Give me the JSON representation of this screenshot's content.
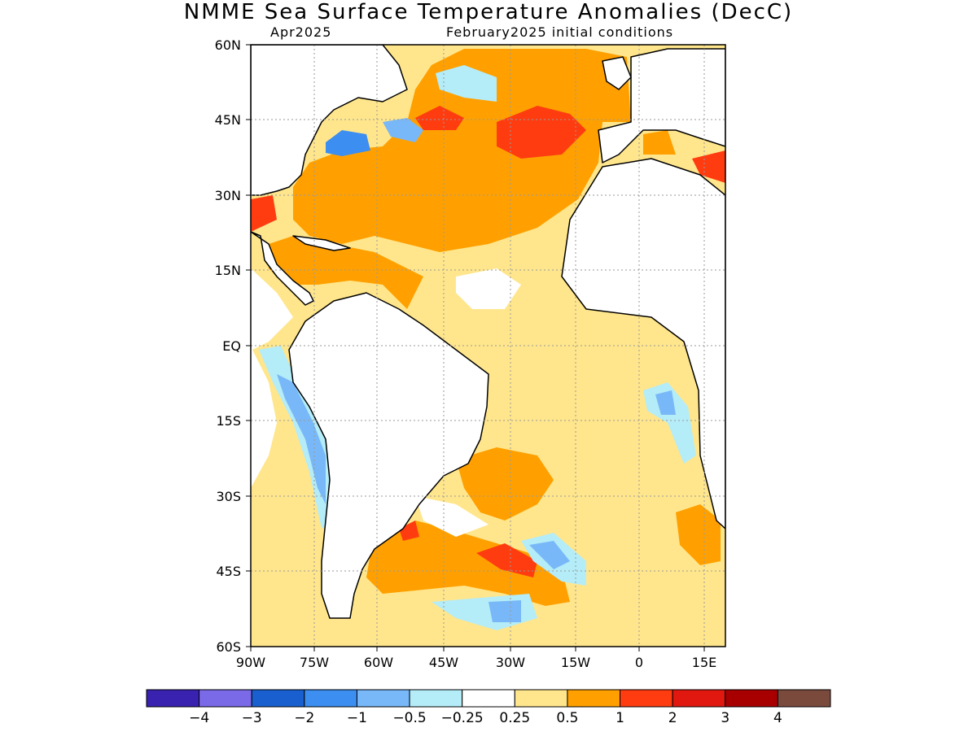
{
  "title": "NMME Sea Surface Temperature Anomalies (DecC)",
  "valid_month": "Apr2025",
  "initial_conditions": "February2025 initial conditions",
  "map": {
    "lat_labels": [
      "60N",
      "45N",
      "30N",
      "15N",
      "EQ",
      "15S",
      "30S",
      "45S",
      "60S"
    ],
    "lon_labels": [
      "90W",
      "75W",
      "60W",
      "45W",
      "30W",
      "15W",
      "0",
      "15E"
    ],
    "lat_range": [
      -60,
      60
    ],
    "lon_range": [
      -90,
      18
    ],
    "gridlines": "dotted",
    "coastlines": true
  },
  "colorbar": {
    "colors": [
      "#3a22b0",
      "#7b6ae8",
      "#1a5fd0",
      "#3c8ef0",
      "#78b8f8",
      "#b4ecf8",
      "#ffffff",
      "#ffe68c",
      "#ffa000",
      "#ff3c10",
      "#e01810",
      "#a80000",
      "#7a4a3c"
    ],
    "labels": [
      "−4",
      "−3",
      "−2",
      "−1",
      "−0.5",
      "−0.25",
      "0.25",
      "0.5",
      "1",
      "2",
      "3",
      "4"
    ]
  }
}
